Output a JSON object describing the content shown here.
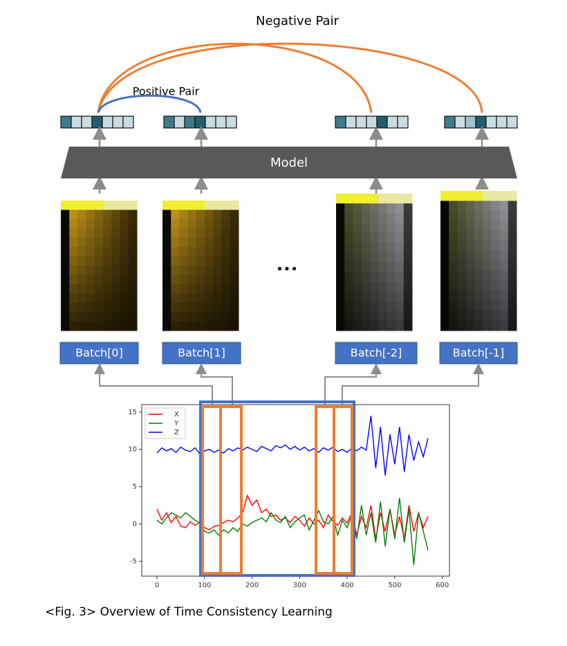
{
  "labels": {
    "negative_pair": "Negative Pair",
    "positive_pair": "Positive Pair",
    "model": "Model",
    "ellipsis": "•••"
  },
  "batches": [
    "Batch[0]",
    "Batch[1]",
    "Batch[-2]",
    "Batch[-1]"
  ],
  "caption": "<Fig. 3> Overview of Time Consistency Learning",
  "chart_data": {
    "type": "line",
    "x": [
      0,
      10,
      20,
      30,
      40,
      50,
      60,
      70,
      80,
      90,
      100,
      110,
      120,
      130,
      140,
      150,
      160,
      170,
      180,
      190,
      200,
      210,
      220,
      230,
      240,
      250,
      260,
      270,
      280,
      290,
      300,
      310,
      320,
      330,
      340,
      350,
      360,
      370,
      380,
      390,
      400,
      410,
      420,
      430,
      440,
      450,
      460,
      470,
      480,
      490,
      500,
      510,
      520,
      530,
      540,
      550,
      560,
      570
    ],
    "series": [
      {
        "name": "X",
        "color": "#ff0000",
        "values": [
          2,
          0.5,
          1.5,
          0.2,
          1,
          -0.3,
          -0.5,
          0.3,
          -0.2,
          0.2,
          -0.5,
          -0.8,
          -0.3,
          -0.2,
          0.2,
          0.5,
          0.3,
          0.8,
          1.5,
          3.8,
          2.5,
          3.2,
          1.5,
          2.0,
          1.0,
          1.2,
          0.5,
          0.8,
          0.2,
          1.0,
          0.5,
          -0.3,
          0.8,
          0,
          0.5,
          -0.5,
          1.2,
          0.3,
          -0.2,
          0.8,
          0.1,
          1.5,
          -1.5,
          1.0,
          -0.5,
          2.5,
          -2,
          1.5,
          -1,
          2,
          -1.5,
          1,
          -2,
          2.5,
          -1,
          1.5,
          -0.5,
          1.0
        ]
      },
      {
        "name": "Y",
        "color": "#008000",
        "values": [
          0.5,
          0,
          0.8,
          1.5,
          1.2,
          0.8,
          1.5,
          1.0,
          0.5,
          0.2,
          -1,
          -1.2,
          -0.8,
          -1.5,
          -0.8,
          -1.2,
          -0.5,
          -1,
          0,
          -0.3,
          0.2,
          0.5,
          0.8,
          0.3,
          1.5,
          0.5,
          0.2,
          1.0,
          -0.5,
          0.3,
          0.8,
          1.2,
          -0.8,
          0.5,
          1.8,
          0.3,
          0,
          1.0,
          -1.5,
          0.5,
          -0.5,
          1.2,
          -2,
          2.5,
          -1.5,
          1.5,
          -2.5,
          3,
          -3,
          2,
          -2,
          3.5,
          -2.5,
          2,
          -5.5,
          1.5,
          -1,
          -3.5
        ]
      },
      {
        "name": "Z",
        "color": "#0000ff",
        "values": [
          9.5,
          10.2,
          9.8,
          10.1,
          9.6,
          10.3,
          9.9,
          9.7,
          10.2,
          9.4,
          9.8,
          10.0,
          9.6,
          9.9,
          9.5,
          10.1,
          9.8,
          10.2,
          9.9,
          10.3,
          10.0,
          9.7,
          10.4,
          10.1,
          9.8,
          10.5,
          10.2,
          10.6,
          10.0,
          10.4,
          9.9,
          10.3,
          9.8,
          10.1,
          9.6,
          10.2,
          9.9,
          10.3,
          9.7,
          10.0,
          9.6,
          10.2,
          9.8,
          10.3,
          9.9,
          14.5,
          7.5,
          13,
          6.5,
          12,
          8,
          13,
          7,
          12,
          8.5,
          11,
          9,
          11.5
        ]
      }
    ],
    "xlim": [
      -32,
      615
    ],
    "ylim": [
      -7,
      16
    ],
    "xticks": [
      0,
      100,
      200,
      300,
      400,
      500,
      600
    ],
    "yticks": [
      -5,
      0,
      5,
      10,
      15
    ]
  }
}
